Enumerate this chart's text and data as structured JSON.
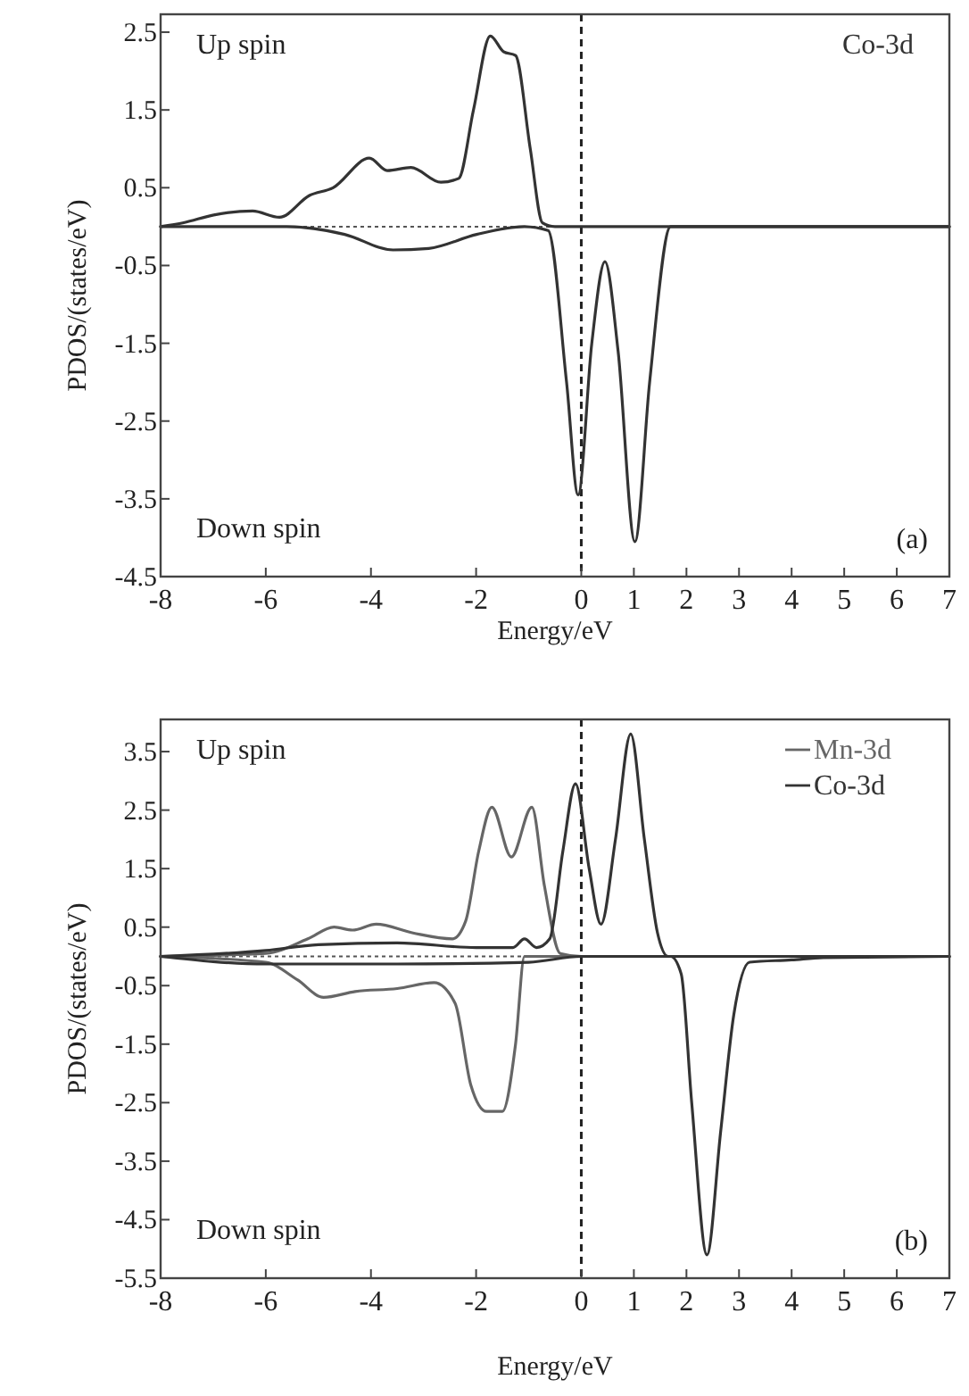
{
  "chart_data": [
    {
      "type": "line",
      "xlabel": "Energy/eV",
      "ylabel": "PDOS/(states/eV)",
      "xlim": [
        -8,
        7
      ],
      "ylim": [
        -4.5,
        2.73
      ],
      "xticks": [
        -8,
        -6,
        -4,
        -2,
        0,
        1,
        2,
        3,
        4,
        5,
        6,
        7
      ],
      "yticks": [
        2.5,
        1.5,
        0.5,
        -0.5,
        -1.5,
        -2.5,
        -3.5,
        -4.5
      ],
      "legend": "top right",
      "line_style": "solid",
      "grid": false,
      "annotations": [
        "Up spin",
        "Down spin",
        "(a)"
      ],
      "ref_lines": [
        {
          "axis": "x",
          "value": 0,
          "line_style": "dashed"
        },
        {
          "axis": "y",
          "value": 0,
          "line_style": "dotted"
        }
      ],
      "series": [
        {
          "name": "Co-3d",
          "color": "#333333",
          "x": [
            -8,
            -7.56,
            -6.99,
            -6.25,
            -5.74,
            -5.17,
            -4.72,
            -4.03,
            -3.69,
            -3.24,
            -2.67,
            -2.33,
            -2.05,
            -1.73,
            -1.48,
            -1.25,
            -0.97,
            -0.74,
            -0.5,
            0,
            2,
            7
          ],
          "values": [
            0,
            0.05,
            0.15,
            0.2,
            0.12,
            0.4,
            0.5,
            0.88,
            0.72,
            0.76,
            0.57,
            0.62,
            1.5,
            2.45,
            2.25,
            2.2,
            1.0,
            0.05,
            0,
            0,
            0,
            0
          ]
        },
        {
          "color": "#333333",
          "x": [
            -8,
            -5.6,
            -4.5,
            -3.58,
            -2.9,
            -1.99,
            -1.08,
            -0.63,
            -0.28,
            -0.06,
            0.2,
            0.45,
            0.7,
            1.02,
            1.3,
            1.7,
            2,
            7
          ],
          "values": [
            0,
            0,
            -0.1,
            -0.3,
            -0.28,
            -0.1,
            0,
            -0.05,
            -2.0,
            -3.45,
            -1.5,
            -0.45,
            -1.6,
            -4.05,
            -2.0,
            0,
            0,
            0
          ]
        }
      ]
    },
    {
      "type": "line",
      "xlabel": "Energy/eV",
      "ylabel": "PDOS/(states/eV)",
      "xlim": [
        -8,
        7
      ],
      "ylim": [
        -5.5,
        4.05
      ],
      "xticks": [
        -8,
        -6,
        -4,
        -2,
        0,
        1,
        2,
        3,
        4,
        5,
        6,
        7
      ],
      "yticks": [
        3.5,
        2.5,
        1.5,
        0.5,
        -0.5,
        -1.5,
        -2.5,
        -3.5,
        -4.5,
        -5.5
      ],
      "legend": "top right",
      "line_style": "solid",
      "grid": false,
      "annotations": [
        "Up spin",
        "Down spin",
        "(b)"
      ],
      "ref_lines": [
        {
          "axis": "x",
          "value": 0,
          "line_style": "dashed"
        },
        {
          "axis": "y",
          "value": 0,
          "line_style": "dotted"
        }
      ],
      "series": [
        {
          "name": "Mn-3d",
          "color": "#666666",
          "x": [
            -8,
            -6,
            -5.2,
            -4.7,
            -4.35,
            -3.9,
            -3.2,
            -2.45,
            -2.2,
            -1.95,
            -1.7,
            -1.33,
            -0.94,
            -0.7,
            -0.4,
            0,
            7
          ],
          "values": [
            0,
            0.05,
            0.3,
            0.5,
            0.45,
            0.55,
            0.4,
            0.3,
            0.6,
            1.8,
            2.55,
            1.7,
            2.55,
            1.2,
            0.05,
            0,
            0
          ]
        },
        {
          "color": "#666666",
          "x": [
            -8,
            -6,
            -5.4,
            -4.9,
            -4.3,
            -3.5,
            -2.8,
            -2.4,
            -2.1,
            -1.8,
            -1.5,
            -1.25,
            -1.08,
            -0.8,
            0,
            7
          ],
          "values": [
            0,
            -0.1,
            -0.4,
            -0.7,
            -0.6,
            -0.55,
            -0.45,
            -0.8,
            -2.2,
            -2.65,
            -2.65,
            -1.5,
            0,
            0,
            0,
            0
          ]
        },
        {
          "name": "Co-3d",
          "color": "#333333",
          "x": [
            -8,
            -6,
            -5,
            -3.5,
            -2,
            -1.3,
            -1.08,
            -0.85,
            -0.6,
            -0.35,
            -0.11,
            0.15,
            0.375,
            0.65,
            0.94,
            1.2,
            1.45,
            1.65,
            2,
            7
          ],
          "values": [
            0,
            0.1,
            0.2,
            0.23,
            0.15,
            0.15,
            0.3,
            0.15,
            0.3,
            1.8,
            2.95,
            1.5,
            0.55,
            2.0,
            3.8,
            2.0,
            0.4,
            0,
            0,
            0
          ]
        },
        {
          "color": "#333333",
          "x": [
            -8,
            -6,
            -3.5,
            -1,
            0,
            1.7,
            1.9,
            2.1,
            2.39,
            2.65,
            2.9,
            3.2,
            4,
            4.6,
            7
          ],
          "values": [
            0,
            -0.13,
            -0.13,
            -0.1,
            0,
            0,
            -0.3,
            -2.5,
            -5.1,
            -3.0,
            -1.0,
            -0.1,
            -0.06,
            -0.02,
            0
          ]
        }
      ]
    }
  ]
}
